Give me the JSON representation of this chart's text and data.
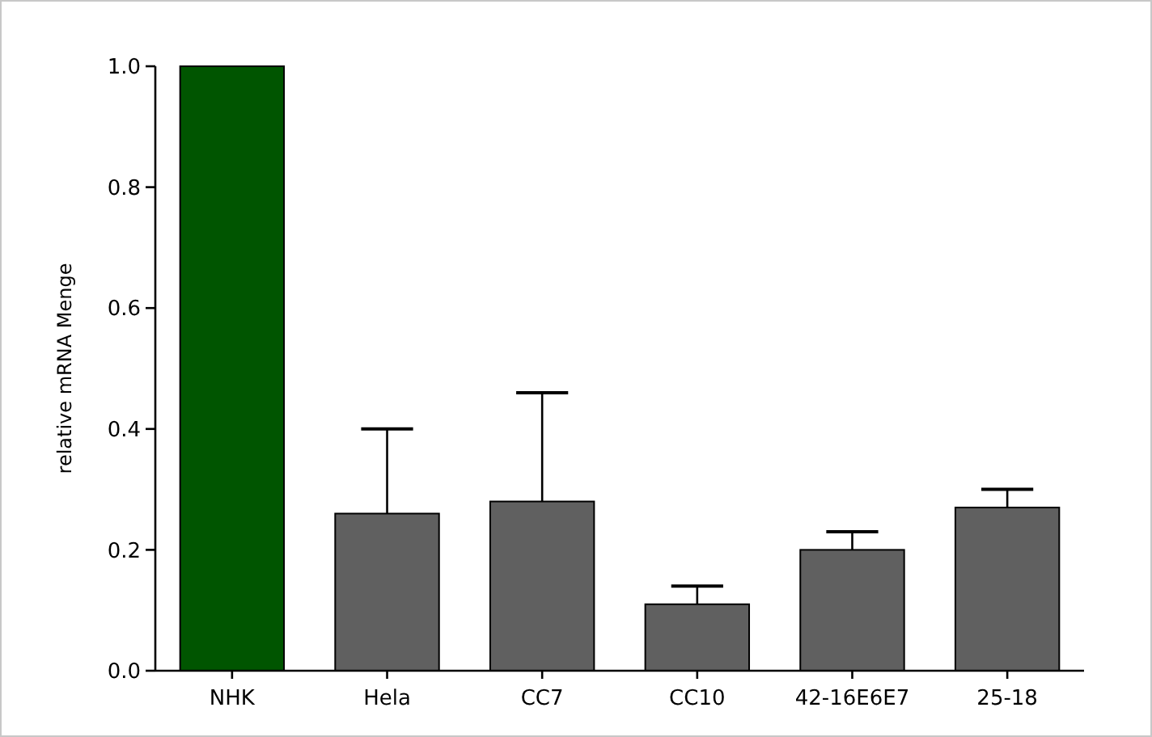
{
  "chart_data": {
    "type": "bar",
    "ylabel": "relative mRNA Menge",
    "categories": [
      "NHK",
      "Hela",
      "CC7",
      "CC10",
      "42-16E6E7",
      "25-18"
    ],
    "values": [
      1.0,
      0.26,
      0.28,
      0.11,
      0.2,
      0.27
    ],
    "colors": [
      "#005500",
      "#606060",
      "#606060",
      "#606060",
      "#606060",
      "#606060"
    ],
    "errors": [
      null,
      [
        0.26,
        0.4
      ],
      [
        0.28,
        0.46
      ],
      [
        0.11,
        0.14
      ],
      [
        0.2,
        0.23
      ],
      [
        0.27,
        0.3
      ]
    ],
    "ylim": [
      0,
      1.0
    ],
    "yticks": [
      {
        "value": 0,
        "label": "0.0"
      },
      {
        "value": 0.2,
        "label": "0.2"
      },
      {
        "value": 0.4,
        "label": "0.4"
      },
      {
        "value": 0.6,
        "label": "0.6"
      },
      {
        "value": 0.8,
        "label": "0.8"
      },
      {
        "value": 1.0,
        "label": "1.0"
      }
    ],
    "grid": false
  }
}
